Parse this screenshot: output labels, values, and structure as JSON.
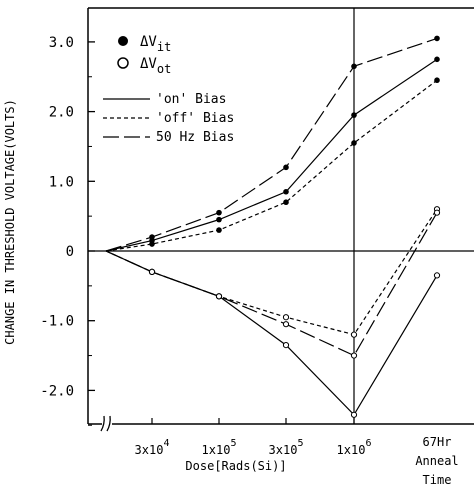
{
  "chart_data": {
    "type": "line",
    "ylabel": "CHANGE IN THRESHOLD VOLTAGE(VOLTS)",
    "xlabel": "Dose[Rads(Si)]",
    "ylim": [
      -2.35,
      3.45
    ],
    "y_ticks": [
      3.0,
      2.0,
      1.0,
      0,
      -1.0,
      -2.0
    ],
    "y_tick_labels": [
      "3.0",
      "2.0",
      "1.0",
      "0",
      "-1.0",
      "-2.0"
    ],
    "x_ticks": [
      {
        "base": "3x10",
        "exp": "4"
      },
      {
        "base": "1x10",
        "exp": "5"
      },
      {
        "base": "3x10",
        "exp": "5"
      },
      {
        "base": "1x10",
        "exp": "6"
      }
    ],
    "anneal_label_lines": [
      "67Hr",
      "Anneal",
      "Time"
    ],
    "grid": false,
    "legend": {
      "placement": "top-left",
      "markers": [
        {
          "symbol": "filled",
          "name_main": "ΔV",
          "name_sub": "it"
        },
        {
          "symbol": "open",
          "name_main": "ΔV",
          "name_sub": "ot"
        }
      ],
      "lines": [
        {
          "style": "solid",
          "label": "'on' Bias"
        },
        {
          "style": "dashed",
          "label": "'off' Bias"
        },
        {
          "style": "longdash",
          "label": "50 Hz Bias"
        }
      ]
    },
    "series": [
      {
        "bias": "50 Hz",
        "quantity": "dVit",
        "points": [
          [
            0,
            0
          ],
          [
            1,
            0.2
          ],
          [
            2,
            0.55
          ],
          [
            3,
            1.2
          ],
          [
            4,
            2.65
          ],
          [
            5,
            3.05
          ]
        ]
      },
      {
        "bias": "on",
        "quantity": "dVit",
        "points": [
          [
            0,
            0
          ],
          [
            1,
            0.15
          ],
          [
            2,
            0.45
          ],
          [
            3,
            0.85
          ],
          [
            4,
            1.95
          ],
          [
            5,
            2.75
          ]
        ]
      },
      {
        "bias": "off",
        "quantity": "dVit",
        "points": [
          [
            0,
            0
          ],
          [
            1,
            0.1
          ],
          [
            2,
            0.3
          ],
          [
            3,
            0.7
          ],
          [
            4,
            1.55
          ],
          [
            5,
            2.45
          ]
        ]
      },
      {
        "bias": "off",
        "quantity": "dVot",
        "points": [
          [
            0,
            0
          ],
          [
            1,
            -0.3
          ],
          [
            2,
            -0.65
          ],
          [
            3,
            -0.95
          ],
          [
            4,
            -1.2
          ],
          [
            5,
            0.6
          ]
        ]
      },
      {
        "bias": "50 Hz",
        "quantity": "dVot",
        "points": [
          [
            0,
            0
          ],
          [
            1,
            -0.3
          ],
          [
            2,
            -0.65
          ],
          [
            3,
            -1.05
          ],
          [
            4,
            -1.5
          ],
          [
            5,
            0.55
          ]
        ]
      },
      {
        "bias": "on",
        "quantity": "dVot",
        "points": [
          [
            0,
            0
          ],
          [
            1,
            -0.3
          ],
          [
            2,
            -0.65
          ],
          [
            3,
            -1.35
          ],
          [
            4,
            -2.35
          ],
          [
            5,
            -0.35
          ]
        ]
      }
    ],
    "x_positions_note_free": true
  }
}
